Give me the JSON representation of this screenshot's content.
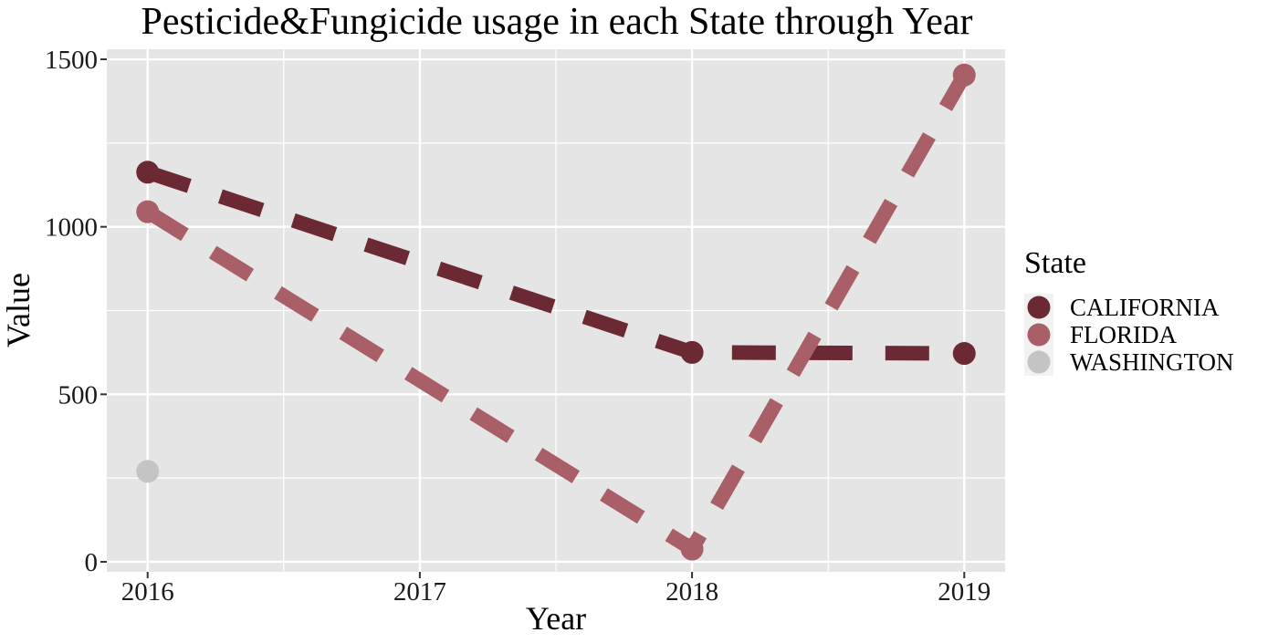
{
  "chart_data": {
    "type": "line",
    "title": "Pesticide&Fungicide usage in each State through Year",
    "xlabel": "Year",
    "ylabel": "Value",
    "x": [
      2016,
      2017,
      2018,
      2019
    ],
    "xlim": [
      2015.85,
      2019.15
    ],
    "ylim": [
      -30,
      1530
    ],
    "yticks": [
      0,
      500,
      1000,
      1500
    ],
    "grid": true,
    "legend_title": "State",
    "legend_position": "right",
    "line_style": "dashed",
    "series": [
      {
        "name": "CALIFORNIA",
        "color": "#6b2a33",
        "points": [
          [
            2016,
            1163
          ],
          [
            2018,
            625
          ],
          [
            2019,
            622
          ]
        ]
      },
      {
        "name": "FLORIDA",
        "color": "#a85f67",
        "points": [
          [
            2016,
            1045
          ],
          [
            2018,
            38
          ],
          [
            2019,
            1453
          ]
        ]
      },
      {
        "name": "WASHINGTON",
        "color": "#c4c4c4",
        "points": [
          [
            2016,
            270
          ]
        ]
      }
    ],
    "panel_color": "#e5e5e5",
    "grid_color": "#ffffff"
  }
}
